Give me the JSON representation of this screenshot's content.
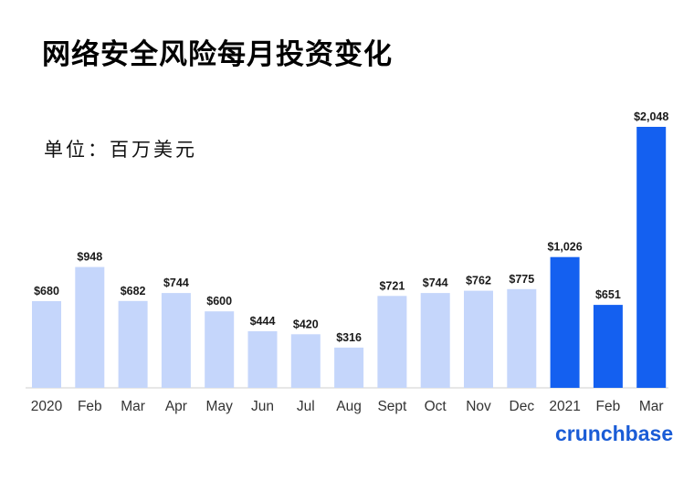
{
  "title": "网络安全风险每月投资变化",
  "unit_label": "单位：百万美元",
  "brand": "crunchbase",
  "colors": {
    "light_bar": "#c5d6fb",
    "dark_bar": "#1460f0",
    "text": "#1a1a1a",
    "axis": "#cfcfcf",
    "brand": "#1a5cd6"
  },
  "chart_data": {
    "type": "bar",
    "categories": [
      "2020",
      "Feb",
      "Mar",
      "Apr",
      "May",
      "Jun",
      "Jul",
      "Aug",
      "Sept",
      "Oct",
      "Nov",
      "Dec",
      "2021",
      "Feb",
      "Mar"
    ],
    "values": [
      680,
      948,
      682,
      744,
      600,
      444,
      420,
      316,
      721,
      744,
      762,
      775,
      1026,
      651,
      2048
    ],
    "labels": [
      "$680",
      "$948",
      "$682",
      "$744",
      "$600",
      "$444",
      "$420",
      "$316",
      "$721",
      "$744",
      "$762",
      "$775",
      "$1,026",
      "$651",
      "$2,048"
    ],
    "highlight": [
      false,
      false,
      false,
      false,
      false,
      false,
      false,
      false,
      false,
      false,
      false,
      false,
      true,
      true,
      true
    ],
    "title": "网络安全风险每月投资变化",
    "xlabel": "",
    "ylabel": "",
    "ylim": [
      0,
      2048
    ],
    "grid": false
  }
}
